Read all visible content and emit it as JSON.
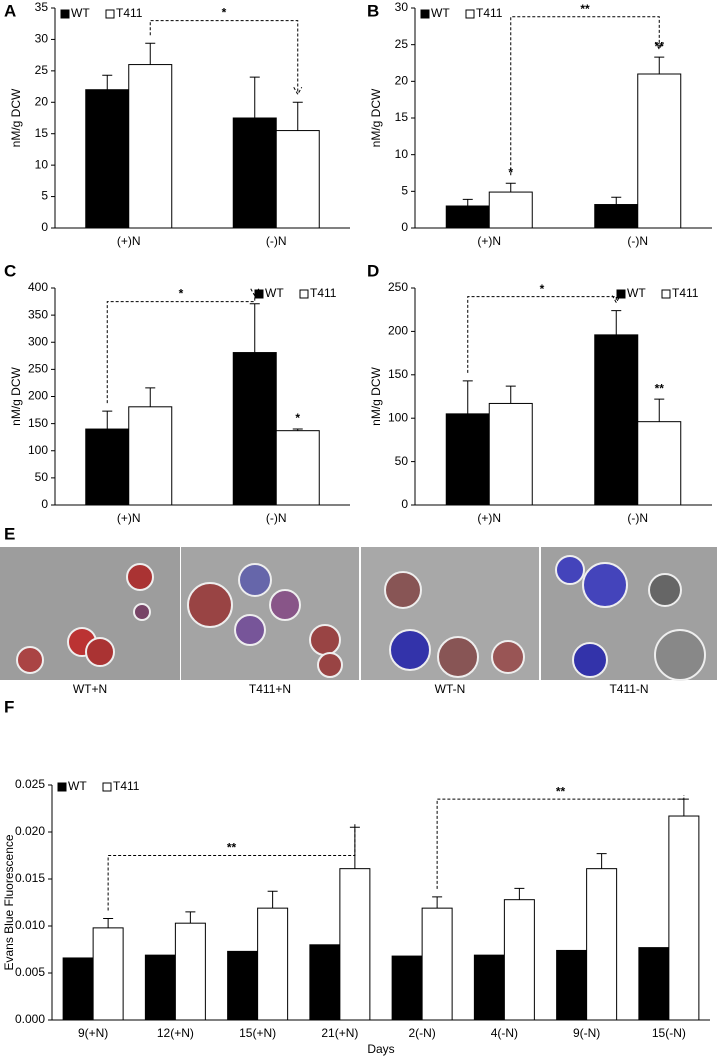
{
  "chart_data": [
    {
      "type": "bar",
      "panel": "A",
      "y_label": "nM/g DCW",
      "categories": [
        "(+)N",
        "(-)N"
      ],
      "series": [
        {
          "name": "WT",
          "color": "#000000",
          "values": [
            22,
            17.5
          ],
          "errors": [
            2.3,
            6.5
          ]
        },
        {
          "name": "T411",
          "color": "#ffffff",
          "values": [
            26,
            15.5
          ],
          "errors": [
            3.4,
            4.5
          ]
        }
      ],
      "ylim": [
        0,
        35
      ],
      "yticks": [
        0,
        5,
        10,
        15,
        20,
        25,
        30,
        35
      ],
      "legend": "upper left",
      "annotations": [
        {
          "text": "*"
        }
      ]
    },
    {
      "type": "bar",
      "panel": "B",
      "y_label": "nM/g DCW",
      "categories": [
        "(+)N",
        "(-)N"
      ],
      "series": [
        {
          "name": "WT",
          "color": "#000000",
          "values": [
            3,
            3.2
          ],
          "errors": [
            0.9,
            1
          ]
        },
        {
          "name": "T411",
          "color": "#ffffff",
          "values": [
            4.9,
            21
          ],
          "errors": [
            1.2,
            2.3
          ]
        }
      ],
      "ylim": [
        0,
        30
      ],
      "yticks": [
        0,
        5,
        10,
        15,
        20,
        25,
        30
      ],
      "legend": "upper left",
      "annotations": [
        {
          "text": "**"
        },
        {
          "text": "*"
        },
        {
          "text": "**"
        }
      ]
    },
    {
      "type": "bar",
      "panel": "C",
      "y_label": "nM/g DCW",
      "categories": [
        "(+)N",
        "(-)N"
      ],
      "series": [
        {
          "name": "WT",
          "color": "#000000",
          "values": [
            140,
            281
          ],
          "errors": [
            33,
            90
          ]
        },
        {
          "name": "T411",
          "color": "#ffffff",
          "values": [
            181,
            137
          ],
          "errors": [
            35,
            3
          ]
        }
      ],
      "ylim": [
        0,
        400
      ],
      "yticks": [
        0,
        50,
        100,
        150,
        200,
        250,
        300,
        350,
        400
      ],
      "legend": "upper right",
      "annotations": [
        {
          "text": "*"
        },
        {
          "text": "*"
        }
      ]
    },
    {
      "type": "bar",
      "panel": "D",
      "y_label": "nM/g DCW",
      "categories": [
        "(+)N",
        "(-)N"
      ],
      "series": [
        {
          "name": "WT",
          "color": "#000000",
          "values": [
            105,
            196
          ],
          "errors": [
            38,
            28
          ]
        },
        {
          "name": "T411",
          "color": "#ffffff",
          "values": [
            117,
            96
          ],
          "errors": [
            20,
            26
          ]
        }
      ],
      "ylim": [
        0,
        250
      ],
      "yticks": [
        0,
        50,
        100,
        150,
        200,
        250
      ],
      "legend": "upper right",
      "annotations": [
        {
          "text": "*"
        },
        {
          "text": "**"
        }
      ]
    },
    {
      "type": "bar",
      "panel": "F",
      "y_label": "Evans Blue Fluorescence",
      "x_label": "Days",
      "categories": [
        "9(+N)",
        "12(+N)",
        "15(+N)",
        "21(+N)",
        "2(-N)",
        "4(-N)",
        "9(-N)",
        "15(-N)"
      ],
      "series": [
        {
          "name": "WT",
          "color": "#000000",
          "values": [
            0.0066,
            0.0069,
            0.0073,
            0.008,
            0.0068,
            0.0069,
            0.0074,
            0.0077
          ]
        },
        {
          "name": "T411",
          "color": "#ffffff",
          "values": [
            0.0098,
            0.0103,
            0.0119,
            0.0161,
            0.0119,
            0.0128,
            0.0161,
            0.0217
          ],
          "errors": [
            0.001,
            0.0012,
            0.0018,
            0.0044,
            0.0012,
            0.0012,
            0.0016,
            0.0018
          ]
        }
      ],
      "ylim": [
        0,
        0.025
      ],
      "yticks": [
        {
          "value": 0,
          "label": "0.000"
        },
        0.005,
        {
          "value": 0.01,
          "label": "0.010"
        },
        0.015,
        {
          "value": 0.02,
          "label": "0.020"
        },
        0.025
      ],
      "legend": "upper left",
      "annotations": [
        {
          "text": "**"
        },
        {
          "text": "**"
        }
      ]
    }
  ],
  "image_panel": {
    "panel": "E",
    "captions": [
      "WT+N",
      "T411+N",
      "WT-N",
      "T411-N"
    ]
  }
}
